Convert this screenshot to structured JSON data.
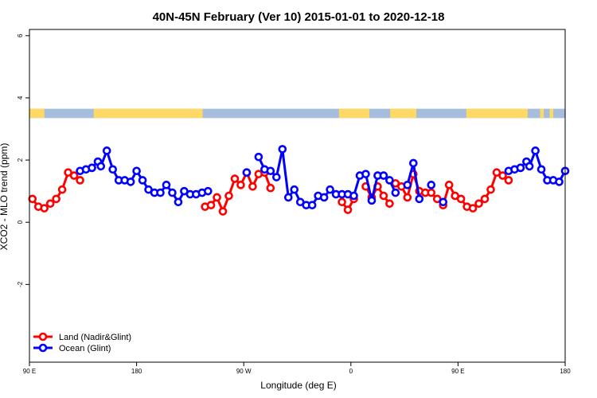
{
  "chart_data": {
    "type": "line",
    "title": "40N-45N February (Ver 10)   2015-01-01 to 2020-12-18",
    "xlabel": "Longitude (deg E)",
    "ylabel": "XCO2 - MLO trend (ppm)",
    "xlim": [
      90,
      540
    ],
    "ylim": [
      -4.5,
      6.2
    ],
    "x_ticks": [
      {
        "value": 90,
        "label": "90 E"
      },
      {
        "value": 180,
        "label": "180"
      },
      {
        "value": 270,
        "label": "90 W"
      },
      {
        "value": 360,
        "label": "0"
      },
      {
        "value": 450,
        "label": "90 E"
      },
      {
        "value": 540,
        "label": "180"
      }
    ],
    "y_ticks": [
      {
        "value": -2,
        "label": "-2"
      },
      {
        "value": 0,
        "label": "0"
      },
      {
        "value": 2,
        "label": "2"
      },
      {
        "value": 4,
        "label": "4"
      },
      {
        "value": 6,
        "label": "6"
      }
    ],
    "grid": false,
    "legend_position": "bottom-left",
    "surface_band": {
      "y_range": [
        3.35,
        3.65
      ],
      "colors": {
        "land": "#FFD966",
        "ocean": "#A6BDDB"
      },
      "land_spans": [
        [
          90,
          102.5
        ],
        [
          144,
          235.5
        ],
        [
          350,
          375.5
        ],
        [
          393,
          415
        ],
        [
          457,
          508.5
        ],
        [
          519,
          522
        ],
        [
          527,
          530
        ]
      ]
    },
    "series": [
      {
        "name": "Land (Nadir&Glint)",
        "color": "#FF0000",
        "segments": [
          [
            [
              92.5,
              0.75
            ],
            [
              97.5,
              0.5
            ],
            [
              102.5,
              0.45
            ],
            [
              107.5,
              0.6
            ],
            [
              112.5,
              0.75
            ],
            [
              117.5,
              1.05
            ],
            [
              122.5,
              1.6
            ],
            [
              127.5,
              1.5
            ],
            [
              132.5,
              1.35
            ]
          ],
          [
            [
              142.5,
              1.75
            ]
          ],
          [
            [
              237.5,
              0.5
            ],
            [
              242.5,
              0.55
            ],
            [
              247.5,
              0.8
            ],
            [
              252.5,
              0.35
            ],
            [
              257.5,
              0.85
            ],
            [
              262.5,
              1.4
            ],
            [
              267.5,
              1.2
            ],
            [
              272.5,
              1.6
            ],
            [
              277.5,
              1.15
            ],
            [
              282.5,
              1.55
            ],
            [
              287.5,
              1.6
            ],
            [
              292.5,
              1.1
            ]
          ],
          [
            [
              352.5,
              0.65
            ],
            [
              357.5,
              0.4
            ],
            [
              362.5,
              0.75
            ]
          ],
          [
            [
              372.5,
              1.15
            ],
            [
              377.5,
              0.8
            ],
            [
              382.5,
              1.15
            ],
            [
              387.5,
              0.85
            ],
            [
              392.5,
              0.6
            ]
          ],
          [
            [
              397.5,
              1.25
            ],
            [
              402.5,
              1.15
            ],
            [
              407.5,
              0.8
            ],
            [
              412.5,
              1.55
            ],
            [
              417.5,
              1.0
            ],
            [
              422.5,
              0.95
            ],
            [
              427.5,
              0.95
            ],
            [
              432.5,
              0.75
            ],
            [
              437.5,
              0.55
            ],
            [
              442.5,
              1.2
            ],
            [
              447.5,
              0.85
            ],
            [
              452.5,
              0.75
            ],
            [
              457.5,
              0.5
            ],
            [
              462.5,
              0.45
            ],
            [
              467.5,
              0.6
            ],
            [
              472.5,
              0.75
            ],
            [
              477.5,
              1.05
            ],
            [
              482.5,
              1.6
            ],
            [
              487.5,
              1.5
            ],
            [
              492.5,
              1.35
            ]
          ],
          [
            [
              502.5,
              1.75
            ]
          ]
        ]
      },
      {
        "name": "Ocean (Glint)",
        "color": "#0000FF",
        "segments": [
          [
            [
              132.5,
              1.65
            ],
            [
              137.5,
              1.7
            ],
            [
              142.5,
              1.75
            ],
            [
              147.5,
              1.95
            ],
            [
              150.0,
              1.8
            ],
            [
              155.0,
              2.3
            ],
            [
              160.0,
              1.7
            ],
            [
              165.0,
              1.35
            ],
            [
              170.0,
              1.35
            ],
            [
              175.0,
              1.3
            ],
            [
              180.0,
              1.65
            ],
            [
              185.0,
              1.35
            ],
            [
              190.0,
              1.05
            ],
            [
              195.0,
              0.95
            ],
            [
              200.0,
              0.95
            ],
            [
              205.0,
              1.2
            ],
            [
              210.0,
              0.95
            ],
            [
              215.0,
              0.65
            ],
            [
              220.0,
              1.0
            ],
            [
              225.0,
              0.9
            ],
            [
              230.0,
              0.9
            ],
            [
              235.0,
              0.95
            ],
            [
              240.0,
              1.0
            ]
          ],
          [
            [
              272.5,
              1.6
            ]
          ],
          [
            [
              282.5,
              2.1
            ],
            [
              287.5,
              1.7
            ],
            [
              292.5,
              1.65
            ],
            [
              297.5,
              1.45
            ],
            [
              302.5,
              2.35
            ],
            [
              307.5,
              0.8
            ],
            [
              312.5,
              1.05
            ],
            [
              317.5,
              0.65
            ],
            [
              322.5,
              0.55
            ],
            [
              327.5,
              0.55
            ],
            [
              332.5,
              0.85
            ],
            [
              337.5,
              0.8
            ],
            [
              342.5,
              1.05
            ],
            [
              347.5,
              0.9
            ],
            [
              352.5,
              0.9
            ],
            [
              357.5,
              0.9
            ],
            [
              362.5,
              0.85
            ],
            [
              367.5,
              1.5
            ],
            [
              372.5,
              1.55
            ],
            [
              377.5,
              0.7
            ],
            [
              382.5,
              1.5
            ],
            [
              387.5,
              1.5
            ],
            [
              392.5,
              1.35
            ],
            [
              397.5,
              0.95
            ]
          ],
          [
            [
              407.5,
              1.2
            ],
            [
              412.5,
              1.9
            ],
            [
              417.5,
              0.75
            ]
          ],
          [
            [
              427.5,
              1.2
            ]
          ],
          [
            [
              437.5,
              0.65
            ]
          ],
          [
            [
              492.5,
              1.65
            ],
            [
              497.5,
              1.7
            ],
            [
              502.5,
              1.75
            ],
            [
              507.5,
              1.95
            ],
            [
              510.0,
              1.8
            ],
            [
              515.0,
              2.3
            ],
            [
              520.0,
              1.7
            ],
            [
              525.0,
              1.35
            ],
            [
              530.0,
              1.35
            ],
            [
              535.0,
              1.3
            ],
            [
              540.0,
              1.65
            ]
          ]
        ]
      }
    ]
  }
}
